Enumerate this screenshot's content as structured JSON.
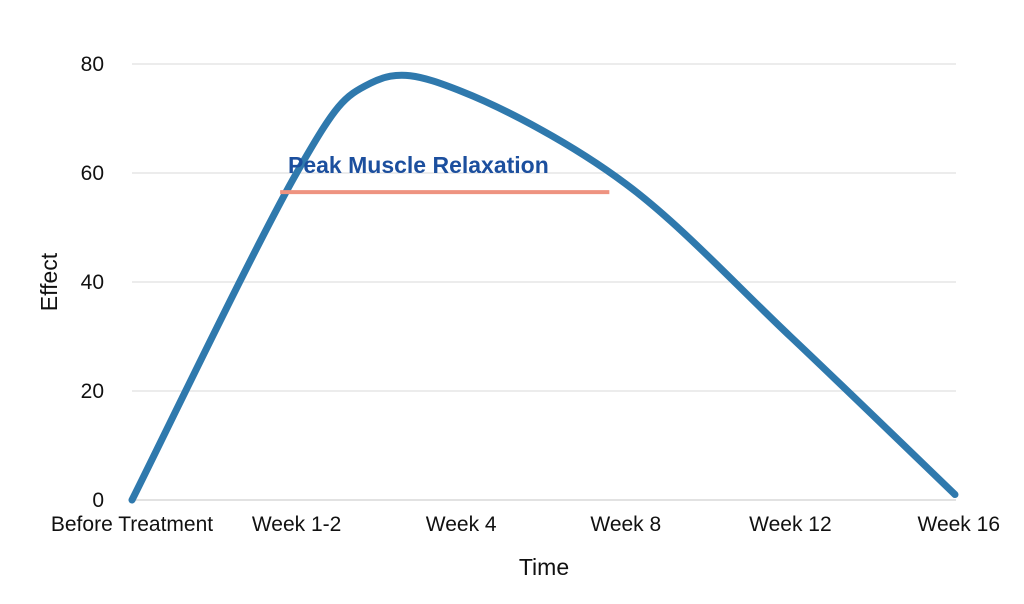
{
  "chart_data": {
    "type": "line",
    "categories": [
      "Before Treatment",
      "Week 1-2",
      "Week 4",
      "Week 8",
      "Week 12",
      "Week 16"
    ],
    "x": [
      0,
      1,
      2,
      3,
      4,
      5
    ],
    "values": [
      0,
      60,
      75,
      58,
      30,
      1
    ],
    "peak": {
      "x": 1.45,
      "y": 76.5
    },
    "xlabel": "Time",
    "ylabel": "Effect",
    "ylim": [
      0,
      80
    ],
    "yticks": [
      0,
      20,
      40,
      60,
      80
    ],
    "grid": true,
    "legend": "none",
    "annotation": {
      "text": "Peak Muscle Relaxation",
      "x_start": 0.9,
      "x_end": 2.9,
      "y": 56.5
    },
    "colors": {
      "line": "#2f79ad",
      "annotation_text": "#1c4f9e",
      "annotation_bar": "#ee9380",
      "grid": "#d9d9d9"
    }
  }
}
